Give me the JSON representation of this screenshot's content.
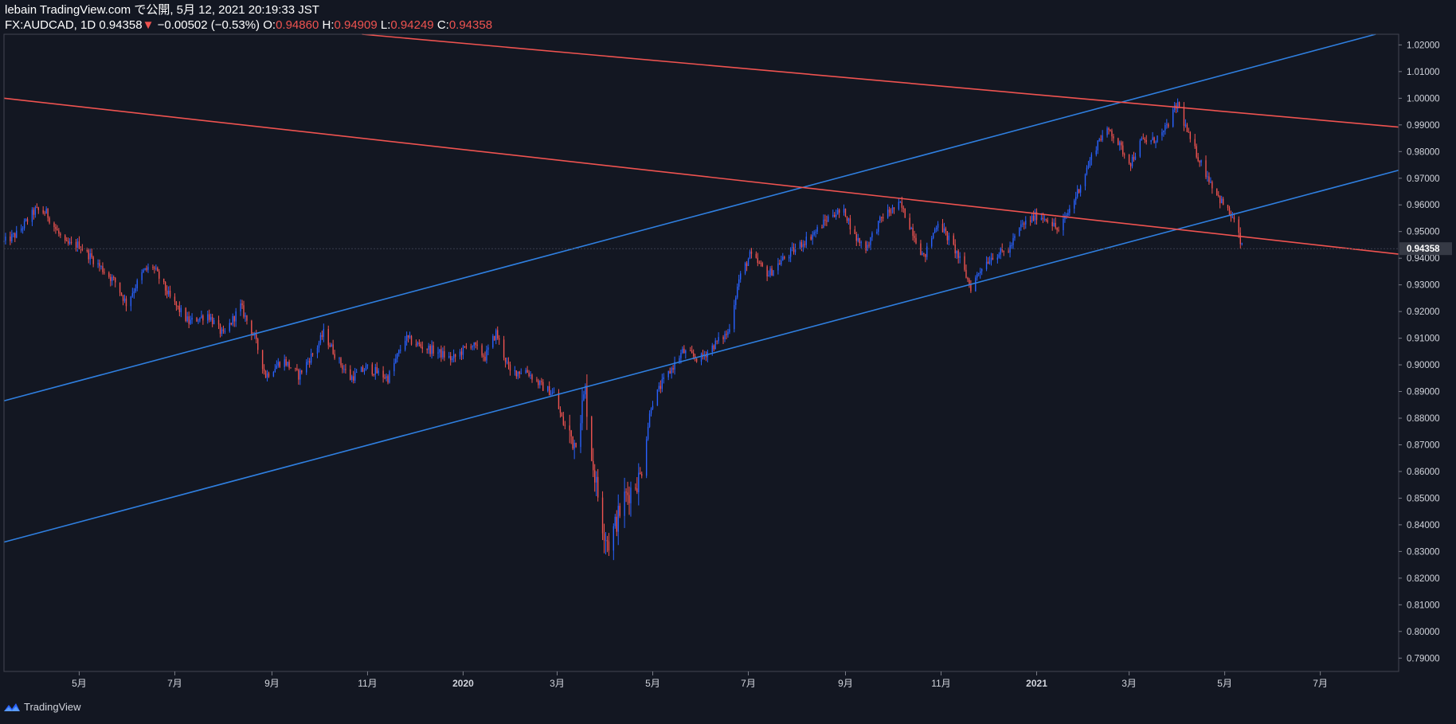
{
  "header": {
    "line1": "lebain TradingView.com で公開, 5月 12, 2021 20:19:33 JST",
    "symbol": "FX:AUDCAD, 1D",
    "last": "0.94358",
    "arrow": "▼",
    "change": "−0.00502 (−0.53%)",
    "o_label": "O:",
    "o_value": "0.94860",
    "h_label": "H:",
    "h_value": "0.94909",
    "l_label": "L:",
    "l_value": "0.94249",
    "c_label": "C:",
    "c_value": "0.94358"
  },
  "footer": {
    "brand": "TradingView",
    "logo_icon": "tradingview-logo-icon"
  },
  "colors": {
    "background": "#131722",
    "up": "#2962ff",
    "down": "#ef5350",
    "trend_blue": "#2f7fe0",
    "trend_red": "#ef5350",
    "axis_text": "#d1d4dc"
  },
  "chart_data": {
    "type": "candlestick",
    "symbol": "FX:AUDCAD",
    "interval": "1D",
    "ylim": [
      0.785,
      1.024
    ],
    "xlim": [
      "2019-03-14",
      "2021-08-20"
    ],
    "y_ticks": [
      "1.02000",
      "1.01000",
      "1.00000",
      "0.99000",
      "0.98000",
      "0.97000",
      "0.96000",
      "0.95000",
      "0.94000",
      "0.93000",
      "0.92000",
      "0.91000",
      "0.90000",
      "0.89000",
      "0.88000",
      "0.87000",
      "0.86000",
      "0.85000",
      "0.84000",
      "0.83000",
      "0.82000",
      "0.81000",
      "0.80000",
      "0.79000"
    ],
    "x_ticks": [
      {
        "label": "5月",
        "date": "2019-05-01"
      },
      {
        "label": "7月",
        "date": "2019-07-01"
      },
      {
        "label": "9月",
        "date": "2019-09-01"
      },
      {
        "label": "11月",
        "date": "2019-11-01"
      },
      {
        "label": "2020",
        "date": "2020-01-01"
      },
      {
        "label": "3月",
        "date": "2020-03-01"
      },
      {
        "label": "5月",
        "date": "2020-05-01"
      },
      {
        "label": "7月",
        "date": "2020-07-01"
      },
      {
        "label": "9月",
        "date": "2020-09-01"
      },
      {
        "label": "11月",
        "date": "2020-11-01"
      },
      {
        "label": "2021",
        "date": "2021-01-01"
      },
      {
        "label": "3月",
        "date": "2021-03-01"
      },
      {
        "label": "5月",
        "date": "2021-05-01"
      },
      {
        "label": "7月",
        "date": "2021-07-01"
      }
    ],
    "last_price": {
      "label": "0.94358",
      "value": 0.94358
    },
    "trendlines": [
      {
        "name": "blue-channel-upper",
        "color": "#2f7fe0",
        "p1": {
          "date": "2019-03-14",
          "value": 0.8865
        },
        "p2": {
          "date": "2021-02-24",
          "value": 0.9985
        }
      },
      {
        "name": "blue-channel-lower",
        "color": "#2f7fe0",
        "p1": {
          "date": "2019-03-14",
          "value": 0.8335
        },
        "p2": {
          "date": "2020-10-21",
          "value": 0.9255
        }
      },
      {
        "name": "red-line-upper",
        "color": "#ef5350",
        "p1": {
          "date": "2019-11-26",
          "value": 1.0225
        },
        "p2": {
          "date": "2021-02-24",
          "value": 0.9985
        }
      },
      {
        "name": "red-line-lower",
        "color": "#ef5350",
        "p1": {
          "date": "2019-03-14",
          "value": 1.0
        },
        "p2": {
          "date": "2020-08-05",
          "value": 0.9665
        }
      }
    ],
    "price_path": [
      [
        "2019-03-14",
        0.946
      ],
      [
        "2019-03-22",
        0.949
      ],
      [
        "2019-04-03",
        0.958
      ],
      [
        "2019-04-10",
        0.957
      ],
      [
        "2019-04-22",
        0.945
      ],
      [
        "2019-05-01",
        0.945
      ],
      [
        "2019-05-14",
        0.937
      ],
      [
        "2019-05-24",
        0.931
      ],
      [
        "2019-05-31",
        0.923
      ],
      [
        "2019-06-11",
        0.935
      ],
      [
        "2019-06-17",
        0.937
      ],
      [
        "2019-06-28",
        0.925
      ],
      [
        "2019-07-10",
        0.916
      ],
      [
        "2019-07-22",
        0.919
      ],
      [
        "2019-08-01",
        0.911
      ],
      [
        "2019-08-12",
        0.922
      ],
      [
        "2019-08-21",
        0.91
      ],
      [
        "2019-08-28",
        0.896
      ],
      [
        "2019-09-08",
        0.902
      ],
      [
        "2019-09-18",
        0.896
      ],
      [
        "2019-09-30",
        0.907
      ],
      [
        "2019-10-04",
        0.912
      ],
      [
        "2019-10-13",
        0.902
      ],
      [
        "2019-10-21",
        0.895
      ],
      [
        "2019-11-01",
        0.899
      ],
      [
        "2019-11-14",
        0.895
      ],
      [
        "2019-11-25",
        0.91
      ],
      [
        "2019-12-05",
        0.907
      ],
      [
        "2019-12-15",
        0.905
      ],
      [
        "2019-12-25",
        0.902
      ],
      [
        "2020-01-06",
        0.908
      ],
      [
        "2020-01-15",
        0.903
      ],
      [
        "2020-01-22",
        0.912
      ],
      [
        "2020-01-31",
        0.897
      ],
      [
        "2020-02-10",
        0.898
      ],
      [
        "2020-02-20",
        0.892
      ],
      [
        "2020-02-28",
        0.889
      ],
      [
        "2020-03-05",
        0.878
      ],
      [
        "2020-03-12",
        0.871
      ],
      [
        "2020-03-19",
        0.89
      ],
      [
        "2020-03-23",
        0.866
      ],
      [
        "2020-03-30",
        0.84
      ],
      [
        "2020-04-03",
        0.833
      ],
      [
        "2020-04-13",
        0.85
      ],
      [
        "2020-04-23",
        0.858
      ],
      [
        "2020-04-30",
        0.885
      ],
      [
        "2020-05-07",
        0.893
      ],
      [
        "2020-05-20",
        0.905
      ],
      [
        "2020-05-31",
        0.902
      ],
      [
        "2020-06-10",
        0.908
      ],
      [
        "2020-06-18",
        0.912
      ],
      [
        "2020-06-25",
        0.932
      ],
      [
        "2020-07-02",
        0.941
      ],
      [
        "2020-07-14",
        0.934
      ],
      [
        "2020-07-22",
        0.939
      ],
      [
        "2020-08-03",
        0.945
      ],
      [
        "2020-08-13",
        0.95
      ],
      [
        "2020-08-24",
        0.957
      ],
      [
        "2020-09-01",
        0.957
      ],
      [
        "2020-09-07",
        0.948
      ],
      [
        "2020-09-14",
        0.944
      ],
      [
        "2020-09-25",
        0.956
      ],
      [
        "2020-10-06",
        0.96
      ],
      [
        "2020-10-14",
        0.95
      ],
      [
        "2020-10-21",
        0.94
      ],
      [
        "2020-10-30",
        0.954
      ],
      [
        "2020-11-11",
        0.942
      ],
      [
        "2020-11-20",
        0.929
      ],
      [
        "2020-11-27",
        0.937
      ],
      [
        "2020-12-04",
        0.941
      ],
      [
        "2020-12-14",
        0.943
      ],
      [
        "2020-12-22",
        0.952
      ],
      [
        "2021-01-01",
        0.956
      ],
      [
        "2021-01-08",
        0.955
      ],
      [
        "2021-01-15",
        0.95
      ],
      [
        "2021-01-25",
        0.962
      ],
      [
        "2021-02-03",
        0.975
      ],
      [
        "2021-02-10",
        0.985
      ],
      [
        "2021-02-17",
        0.988
      ],
      [
        "2021-02-24",
        0.981
      ],
      [
        "2021-03-02",
        0.976
      ],
      [
        "2021-03-09",
        0.984
      ],
      [
        "2021-03-16",
        0.984
      ],
      [
        "2021-03-23",
        0.987
      ],
      [
        "2021-04-01",
        0.998
      ],
      [
        "2021-04-09",
        0.984
      ],
      [
        "2021-04-19",
        0.972
      ],
      [
        "2021-04-28",
        0.962
      ],
      [
        "2021-05-07",
        0.954
      ],
      [
        "2021-05-12",
        0.944
      ]
    ]
  }
}
